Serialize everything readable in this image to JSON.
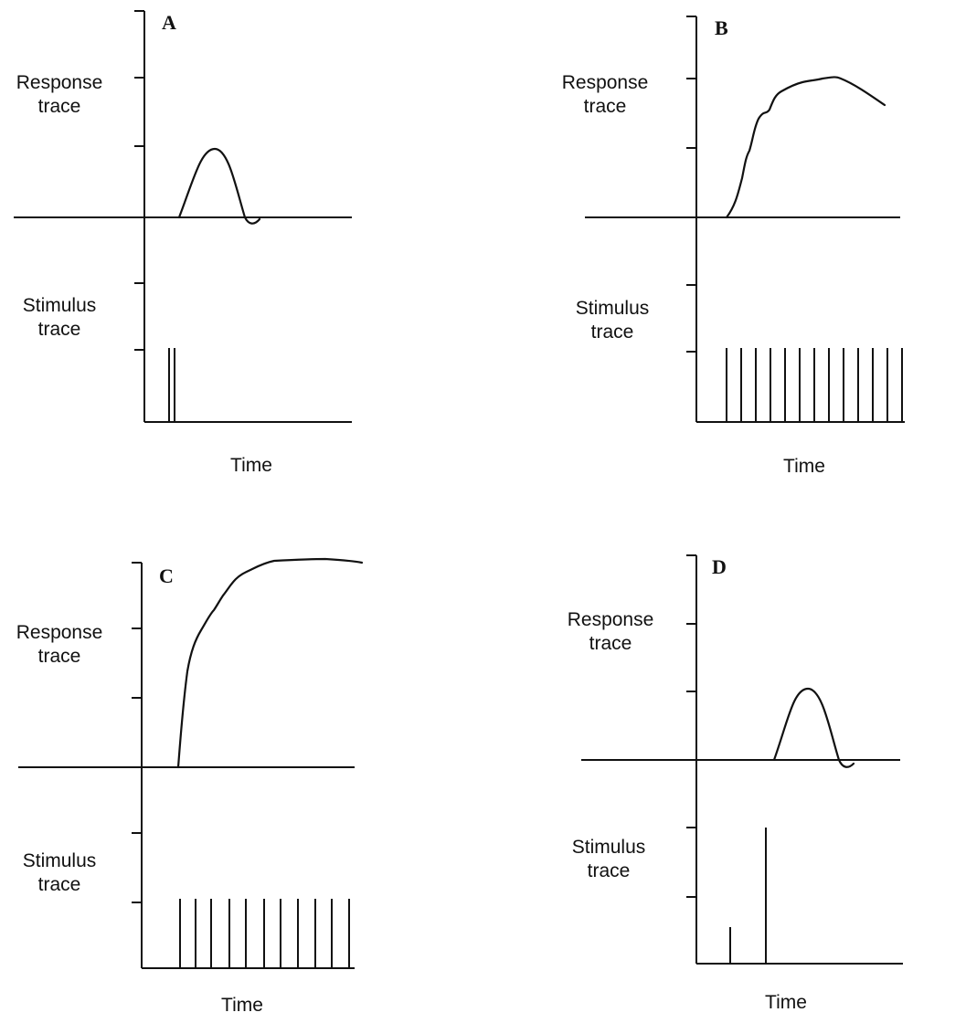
{
  "panels": [
    {
      "letter": "A",
      "response_label": "Response\ntrace",
      "stimulus_label": "Stimulus\ntrace",
      "time_label": "Time"
    },
    {
      "letter": "B",
      "response_label": "Response\ntrace",
      "stimulus_label": "Stimulus\ntrace",
      "time_label": "Time"
    },
    {
      "letter": "C",
      "response_label": "Response\ntrace",
      "stimulus_label": "Stimulus\ntrace",
      "time_label": "Time"
    },
    {
      "letter": "D",
      "response_label": "Response\ntrace",
      "stimulus_label": "Stimulus\ntrace",
      "time_label": "Time"
    }
  ]
}
